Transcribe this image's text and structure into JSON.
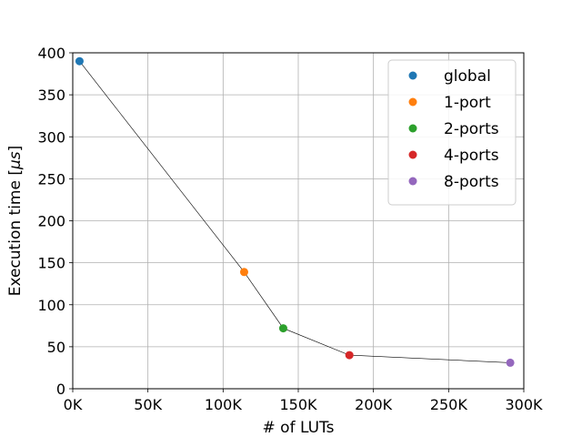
{
  "chart_data": {
    "type": "scatter",
    "title": "",
    "xlabel": "# of LUTs",
    "ylabel_prefix": "Execution time [",
    "ylabel_unit": "μs",
    "ylabel_suffix": "]",
    "xlim": [
      0,
      300000
    ],
    "ylim": [
      0,
      400
    ],
    "xticks": [
      0,
      50000,
      100000,
      150000,
      200000,
      250000,
      300000
    ],
    "xtick_labels": [
      "0K",
      "50K",
      "100K",
      "150K",
      "200K",
      "250K",
      "300K"
    ],
    "yticks": [
      0,
      50,
      100,
      150,
      200,
      250,
      300,
      350,
      400
    ],
    "ytick_labels": [
      "0",
      "50",
      "100",
      "150",
      "200",
      "250",
      "300",
      "350",
      "400"
    ],
    "grid": true,
    "legend_position": "top-right",
    "connecting_line": true,
    "series": [
      {
        "name": "global",
        "color": "#1f77b4",
        "x": 4500,
        "y": 390
      },
      {
        "name": "1-port",
        "color": "#ff7f0e",
        "x": 114000,
        "y": 139
      },
      {
        "name": "2-ports",
        "color": "#2ca02c",
        "x": 140000,
        "y": 72
      },
      {
        "name": "4-ports",
        "color": "#d62728",
        "x": 184000,
        "y": 40
      },
      {
        "name": "8-ports",
        "color": "#9467bd",
        "x": 291000,
        "y": 31
      }
    ]
  }
}
